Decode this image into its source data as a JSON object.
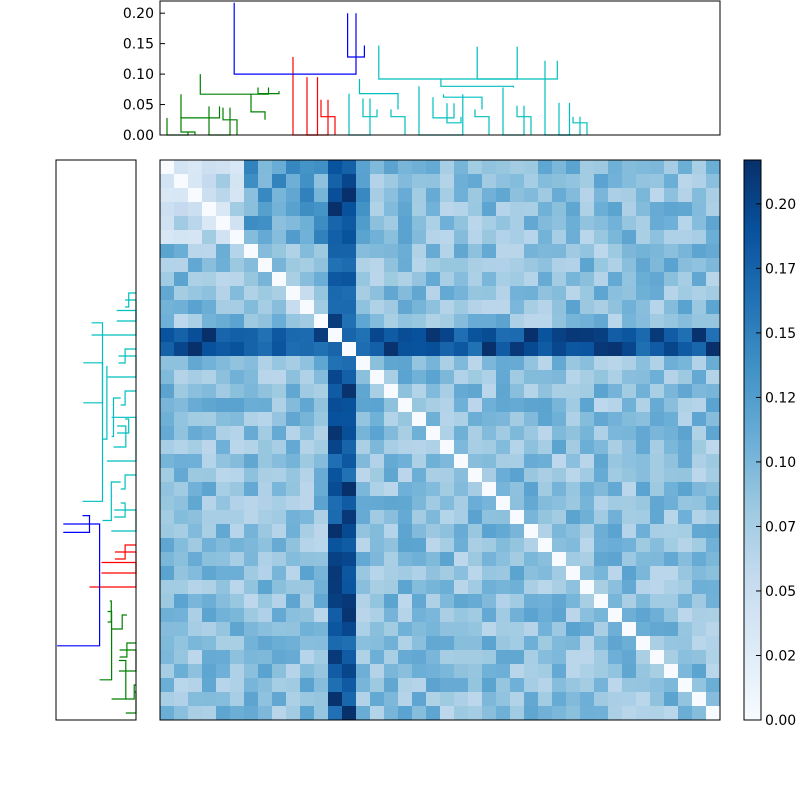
{
  "chart_data": [
    {
      "type": "dendrogram",
      "orientation": "top",
      "ylim": [
        0,
        0.22
      ],
      "yticks": [
        "0.00",
        "0.05",
        "0.10",
        "0.15",
        "0.20"
      ],
      "leaf_count": 40,
      "link_colors": {
        "above_threshold": "#0000ff",
        "cluster_1": "#008000",
        "cluster_2": "#ff0000",
        "cluster_3": "#00bfbf"
      },
      "links": [
        {
          "x": [
            1,
            1,
            2,
            2
          ],
          "y": [
            0.03,
            0.005,
            0.005,
            0
          ],
          "color": "#008000"
        },
        {
          "x": [
            0,
            0,
            1.5,
            1.5
          ],
          "y": [
            0.028,
            0,
            0,
            0.005
          ],
          "color": "#008000"
        },
        {
          "x": [
            4,
            4,
            5,
            5
          ],
          "y": [
            0.045,
            0.025,
            0.025,
            0
          ],
          "color": "#008000"
        },
        {
          "x": [
            3,
            3,
            4.5,
            4.5
          ],
          "y": [
            0.047,
            0,
            0,
            0.045
          ],
          "color": "#008000"
        },
        {
          "x": [
            1,
            1,
            3.75,
            3.75
          ],
          "y": [
            0.067,
            0.028,
            0.028,
            0.047
          ],
          "color": "#008000"
        },
        {
          "x": [
            6,
            6,
            7,
            7
          ],
          "y": [
            0.068,
            0.038,
            0.038,
            0.025
          ],
          "color": "#008000"
        },
        {
          "x": [
            6.5,
            6.5,
            8,
            8
          ],
          "y": [
            0.078,
            0.068,
            0.068,
            0.072
          ],
          "color": "#008000"
        },
        {
          "x": [
            2.375,
            2.375,
            7.25,
            7.25
          ],
          "y": [
            0.1,
            0.067,
            0.067,
            0.078
          ],
          "color": "#008000"
        },
        {
          "x": [
            11,
            11,
            12,
            12
          ],
          "y": [
            0.058,
            0.03,
            0.03,
            0
          ],
          "color": "#ff0000"
        },
        {
          "x": [
            10,
            10,
            11.5,
            11.5
          ],
          "y": [
            0.095,
            0,
            0,
            0.058
          ],
          "color": "#ff0000"
        },
        {
          "x": [
            9,
            9,
            10.75,
            10.75
          ],
          "y": [
            0.128,
            0,
            0,
            0.095
          ],
          "color": "#ff0000"
        },
        {
          "x": [
            14,
            14,
            15,
            15
          ],
          "y": [
            0.06,
            0.03,
            0.03,
            0.042
          ],
          "color": "#00bfbf"
        },
        {
          "x": [
            13,
            13,
            14.5,
            14.5
          ],
          "y": [
            0.068,
            0,
            0,
            0.06
          ],
          "color": "#00bfbf"
        },
        {
          "x": [
            16,
            16,
            17,
            17
          ],
          "y": [
            0.042,
            0.03,
            0.03,
            0
          ],
          "color": "#00bfbf"
        },
        {
          "x": [
            13.75,
            13.75,
            16.5,
            16.5
          ],
          "y": [
            0.092,
            0.068,
            0.068,
            0.042
          ],
          "color": "#00bfbf"
        },
        {
          "x": [
            20,
            20,
            21,
            21
          ],
          "y": [
            0.052,
            0.02,
            0.02,
            0.03
          ],
          "color": "#00bfbf"
        },
        {
          "x": [
            19,
            19,
            20.5,
            20.5
          ],
          "y": [
            0.062,
            0.028,
            0.028,
            0.052
          ],
          "color": "#00bfbf"
        },
        {
          "x": [
            22,
            22,
            23,
            23
          ],
          "y": [
            0.042,
            0.03,
            0.03,
            0
          ],
          "color": "#00bfbf"
        },
        {
          "x": [
            19.75,
            19.75,
            22.5,
            22.5
          ],
          "y": [
            0.067,
            0.062,
            0.062,
            0.042
          ],
          "color": "#00bfbf"
        },
        {
          "x": [
            18,
            18,
            21.125,
            21.125
          ],
          "y": [
            0.08,
            0,
            0,
            0.067
          ],
          "color": "#00bfbf"
        },
        {
          "x": [
            25,
            25,
            26,
            26
          ],
          "y": [
            0.048,
            0.03,
            0.03,
            0
          ],
          "color": "#00bfbf"
        },
        {
          "x": [
            24,
            24,
            25.5,
            25.5
          ],
          "y": [
            0.078,
            0,
            0,
            0.048
          ],
          "color": "#00bfbf"
        },
        {
          "x": [
            19.5625,
            19.5625,
            24.75,
            24.75
          ],
          "y": [
            0.092,
            0.08,
            0.08,
            0.078
          ],
          "color": "#00bfbf"
        },
        {
          "x": [
            29,
            29,
            30,
            30
          ],
          "y": [
            0.03,
            0.02,
            0.02,
            0
          ],
          "color": "#00bfbf"
        },
        {
          "x": [
            28,
            28,
            29.5,
            29.5
          ],
          "y": [
            0.053,
            0,
            0,
            0.03
          ],
          "color": "#00bfbf"
        },
        {
          "x": [
            27,
            27,
            28.75,
            28.75
          ],
          "y": [
            0.122,
            0,
            0,
            0.053
          ],
          "color": "#00bfbf"
        },
        {
          "x": [
            22.15625,
            22.15625,
            27.875,
            27.875
          ],
          "y": [
            0.145,
            0.092,
            0.092,
            0.122
          ],
          "color": "#00bfbf"
        },
        {
          "x": [
            15.125,
            15.125,
            25.015625,
            25.015625
          ],
          "y": [
            0.147,
            0.092,
            0.092,
            0.145
          ],
          "color": "#00bfbf"
        },
        {
          "x": [
            12.9,
            12.9,
            14.1,
            14.1
          ],
          "y": [
            0.2,
            0.128,
            0.128,
            0.147
          ],
          "color": "#0000ff"
        },
        {
          "x": [
            4.8,
            4.8,
            13.5,
            13.5
          ],
          "y": [
            0.217,
            0.1,
            0.1,
            0.2
          ],
          "color": "#0000ff"
        }
      ]
    },
    {
      "type": "dendrogram",
      "orientation": "left",
      "leaf_count": 40,
      "note_source": "visible side dendrogram"
    },
    {
      "type": "heatmap",
      "rows": 40,
      "cols": 40,
      "colormap": "Blues",
      "colorbar": {
        "min": 0.0,
        "max": 0.217,
        "tick_labels": [
          "0.00",
          "0.02",
          "0.05",
          "0.07",
          "0.10",
          "0.12",
          "0.15",
          "0.17",
          "0.20"
        ]
      },
      "diagonal_zero": true,
      "blocks": [
        {
          "rows": [
            0,
            5
          ],
          "cols": [
            0,
            5
          ],
          "value": 0.06
        },
        {
          "rows": [
            0,
            5
          ],
          "cols": [
            6,
            14
          ],
          "value": 0.12
        },
        {
          "rows": [
            6,
            13
          ],
          "cols": [
            6,
            13
          ],
          "value": 0.08
        },
        {
          "rows": [
            14,
            39
          ],
          "cols": [
            14,
            39
          ],
          "value": 0.09
        },
        {
          "rows": [
            0,
            39
          ],
          "cols": [
            12,
            13
          ],
          "value": 0.19
        },
        {
          "rows": [
            12,
            13
          ],
          "cols": [
            0,
            39
          ],
          "value": 0.19
        }
      ]
    }
  ]
}
